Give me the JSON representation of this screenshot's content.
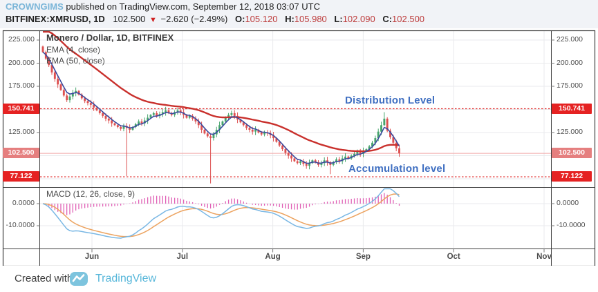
{
  "header": {
    "byline": {
      "author": "CROWNGIMS",
      "rest": " published on TradingView.com, September 12, 2018 03:07 UTC"
    },
    "symbol_line": {
      "symbol": "BITFINEX:XMRUSD, 1D",
      "last": "102.500",
      "direction_icon": "▼",
      "change": "−2.620 (−2.49%)",
      "ohlc": [
        {
          "label": "O:",
          "value": "105.120"
        },
        {
          "label": "H:",
          "value": "105.980"
        },
        {
          "label": "L:",
          "value": "102.090"
        },
        {
          "label": "C:",
          "value": "102.500"
        }
      ]
    }
  },
  "legend": {
    "title": "Monero / Dollar, 1D, BITFINEX",
    "ema_fast": "EMA (4, close)",
    "ema_slow": "EMA (50, close)"
  },
  "annotations": {
    "distribution": "Distribution Level",
    "accumulation": "Accumulation level"
  },
  "macd_label": "MACD (12, 26, close, 9)",
  "footer": {
    "created_with": "Created with",
    "brand": "TradingView"
  },
  "colors": {
    "candle_up": "#46a46c",
    "candle_down": "#dd5050",
    "ema_fast": "#3a4a9f",
    "ema_slow": "#c9302c",
    "macd_line": "#79b7e4",
    "macd_signal": "#eca25e",
    "macd_hist": "#dd4fae",
    "level_red": "#e12d2d",
    "current_price_line": "#f0a8a8",
    "badge_red": "#e52222",
    "badge_current": "#e57f7f",
    "grid": "#e9eaec",
    "frame": "#3c3c3c",
    "annotation_blue": "#3f6fc1"
  },
  "chart_data": {
    "type": "candlestick+macd",
    "title": "Monero / Dollar, 1D, BITFINEX",
    "exchange": "BITFINEX",
    "interval": "1D",
    "date_range": {
      "start": "2018-05-16",
      "end": "2018-09-12"
    },
    "month_labels": [
      "Jun",
      "Jul",
      "Aug",
      "Sep",
      "Oct",
      "Nov"
    ],
    "price_axis": {
      "tick_values": [
        225,
        200,
        175,
        125
      ],
      "ylim": [
        68,
        235
      ],
      "levels": [
        {
          "value": 150.741,
          "style": "dashed",
          "name": "distribution"
        },
        {
          "value": 102.5,
          "style": "current",
          "name": "last-price"
        },
        {
          "value": 77.122,
          "style": "dashed",
          "name": "accumulation"
        }
      ]
    },
    "macd_axis": {
      "tick_values": [
        0,
        -10
      ],
      "ylim": [
        -20,
        7
      ]
    },
    "indicators": {
      "ema_fast_period": 4,
      "ema_slow_period": 50,
      "macd_params": [
        12,
        26,
        9
      ]
    },
    "first_open": 218,
    "closes": [
      212,
      205,
      198,
      190,
      183,
      177,
      171,
      165,
      160,
      164,
      168,
      170,
      166,
      162,
      159,
      157,
      155,
      152,
      149,
      146,
      143,
      140,
      138,
      135,
      133,
      131,
      129,
      132,
      130,
      128,
      131,
      134,
      137,
      135,
      138,
      141,
      144,
      146,
      143,
      145,
      147,
      149,
      146,
      144,
      147,
      149,
      147,
      144,
      141,
      143,
      140,
      137,
      133,
      128,
      124,
      121,
      119,
      123,
      128,
      133,
      137,
      141,
      144,
      146,
      143,
      139,
      136,
      133,
      130,
      128,
      126,
      128,
      125,
      123,
      125,
      124,
      122,
      119,
      115,
      111,
      107,
      103,
      100,
      97,
      94,
      92,
      94,
      91,
      89,
      92,
      95,
      93,
      90,
      92,
      95,
      93,
      90,
      93,
      96,
      94,
      97,
      99,
      97,
      100,
      102,
      104,
      102,
      105,
      107,
      110,
      114,
      119,
      126,
      133,
      140,
      127,
      120,
      114,
      108,
      102.5
    ],
    "wick_overrides": {
      "28": {
        "low": 78
      },
      "56": {
        "low": 70
      },
      "96": {
        "low": 80
      },
      "114": {
        "high": 147
      }
    },
    "last_candle_ohlc": {
      "o": 105.12,
      "h": 105.98,
      "l": 102.09,
      "c": 102.5
    }
  }
}
